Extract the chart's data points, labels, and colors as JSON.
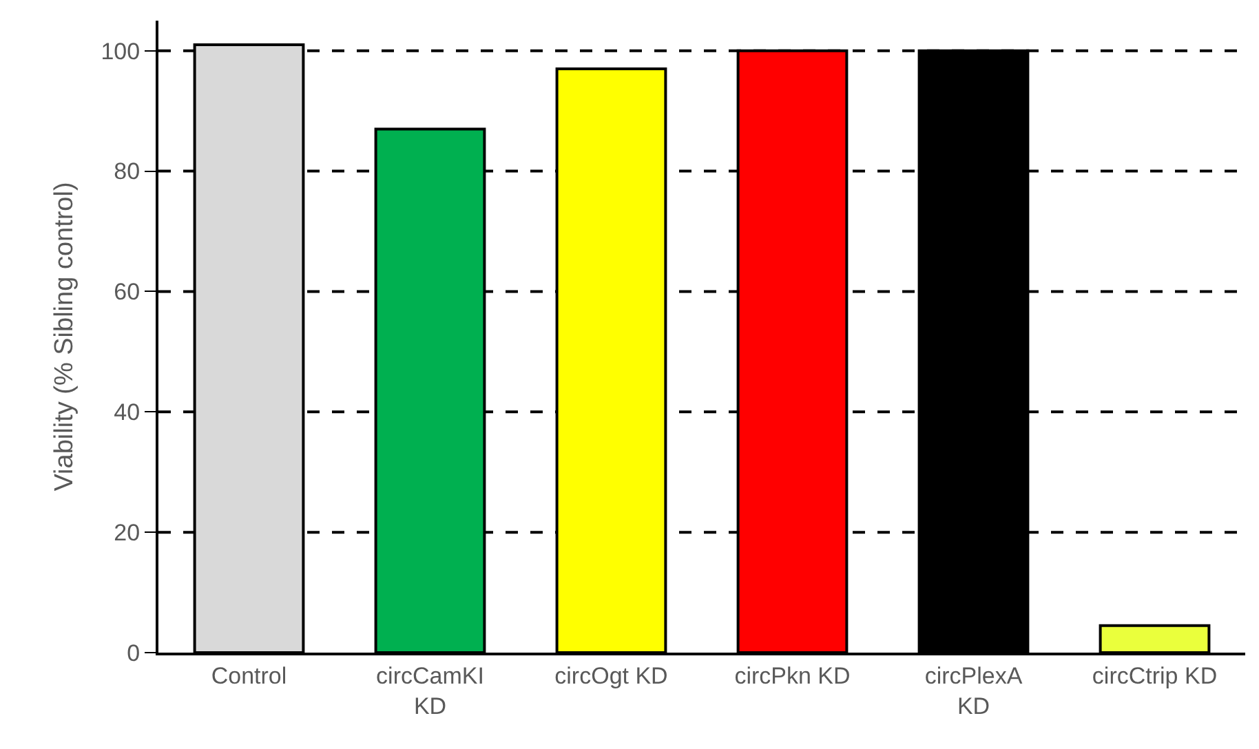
{
  "chart_data": {
    "type": "bar",
    "ylabel": "Viability (% Sibling control)",
    "categories": [
      "Control",
      "circCamKI\nKD",
      "circOgt KD",
      "circPkn KD",
      "circPlexA\nKD",
      "circCtrip KD"
    ],
    "values": [
      101,
      87,
      97,
      100,
      100,
      4.5
    ],
    "colors": [
      "#d9d9d9",
      "#00b050",
      "#ffff00",
      "#ff0000",
      "#000000",
      "#eaff3c"
    ],
    "ylim": [
      0,
      105
    ],
    "yticks": [
      0,
      20,
      40,
      60,
      80,
      100
    ],
    "grid": "y"
  }
}
